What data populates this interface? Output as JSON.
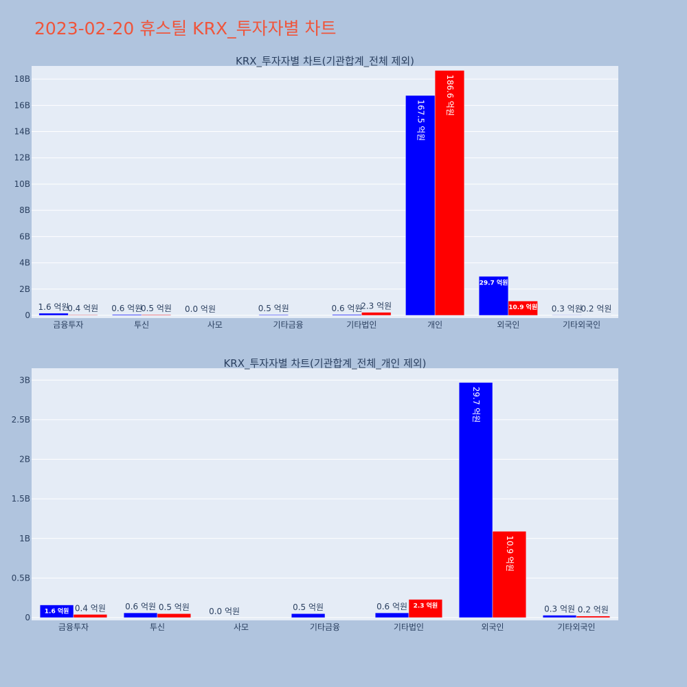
{
  "title": "2023-02-20 휴스틸 KRX_투자자별 차트",
  "chart_data": [
    {
      "type": "bar",
      "title": "KRX_투자자별 차트(기관합계_전체 제외)",
      "categories": [
        "금융투자",
        "투신",
        "사모",
        "기타금융",
        "기타법인",
        "개인",
        "외국인",
        "기타외국인"
      ],
      "series": [
        {
          "color": "#0000ff",
          "values": [
            160000000,
            60000000,
            0,
            50000000,
            60000000,
            16750000000,
            2970000000,
            30000000
          ],
          "labels": [
            "1.6 억원",
            "0.6 억원",
            "0.0 억원",
            "0.5 억원",
            "0.6 억원",
            "167.5 억원",
            "29.7 억원",
            "0.3 억원"
          ]
        },
        {
          "color": "#ff0000",
          "values": [
            40000000,
            50000000,
            null,
            null,
            230000000,
            18660000000,
            1090000000,
            20000000
          ],
          "labels": [
            "0.4 억원",
            "0.5 억원",
            "",
            "",
            "2.3 억원",
            "186.6 억원",
            "10.9 억원",
            "0.2 억원"
          ]
        }
      ],
      "ylim": [
        0,
        19000000000
      ],
      "yticks": [
        0,
        2000000000,
        4000000000,
        6000000000,
        8000000000,
        10000000000,
        12000000000,
        14000000000,
        16000000000,
        18000000000
      ],
      "yticklabels": [
        "0",
        "2B",
        "4B",
        "6B",
        "8B",
        "10B",
        "12B",
        "14B",
        "16B",
        "18B"
      ],
      "grid": true
    },
    {
      "type": "bar",
      "title": "KRX_투자자별 차트(기관합계_전체_개인 제외)",
      "categories": [
        "금융투자",
        "투신",
        "사모",
        "기타금융",
        "기타법인",
        "외국인",
        "기타외국인"
      ],
      "series": [
        {
          "color": "#0000ff",
          "values": [
            160000000,
            60000000,
            0,
            50000000,
            60000000,
            2970000000,
            30000000
          ],
          "labels": [
            "1.6 억원",
            "0.6 억원",
            "0.0 억원",
            "0.5 억원",
            "0.6 억원",
            "29.7 억원",
            "0.3 억원"
          ]
        },
        {
          "color": "#ff0000",
          "values": [
            40000000,
            50000000,
            null,
            null,
            230000000,
            1090000000,
            20000000
          ],
          "labels": [
            "0.4 억원",
            "0.5 억원",
            "",
            "",
            "2.3 억원",
            "10.9 억원",
            "0.2 억원"
          ]
        }
      ],
      "ylim": [
        0,
        3150000000
      ],
      "yticks": [
        0,
        500000000,
        1000000000,
        1500000000,
        2000000000,
        2500000000,
        3000000000
      ],
      "yticklabels": [
        "0",
        "0.5B",
        "1B",
        "1.5B",
        "2B",
        "2.5B",
        "3B"
      ],
      "grid": true
    }
  ]
}
